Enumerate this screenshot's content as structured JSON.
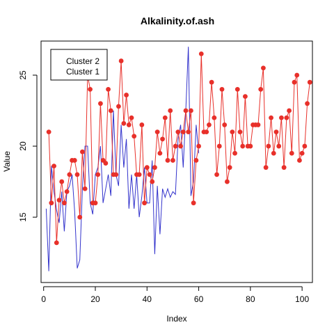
{
  "chart_data": {
    "type": "line",
    "title": "Alkalinity.of.ash",
    "xlabel": "Index",
    "ylabel": "Value",
    "xlim": [
      -1,
      104
    ],
    "ylim": [
      10.4,
      27.4
    ],
    "x_ticks": [
      0,
      20,
      40,
      60,
      80,
      100
    ],
    "y_ticks": [
      15,
      20,
      25
    ],
    "legend": {
      "position": "top-left",
      "entries": [
        "Cluster 2",
        "Cluster 1"
      ]
    },
    "series": [
      {
        "name": "Cluster 1",
        "color": "#3333cc",
        "marker": "none",
        "x": [
          1,
          2,
          3,
          4,
          5,
          6,
          7,
          8,
          9,
          10,
          11,
          12,
          13,
          14,
          15,
          16,
          17,
          18,
          19,
          20,
          21,
          22,
          23,
          24,
          25,
          26,
          27,
          28,
          29,
          30,
          31,
          32,
          33,
          34,
          35,
          36,
          37,
          38,
          39,
          40,
          41,
          42,
          43,
          44,
          45,
          46,
          47,
          48,
          49,
          50,
          51,
          52,
          53,
          54,
          55,
          56,
          57,
          58,
          59,
          60
        ],
        "y": [
          15.6,
          11.2,
          18.6,
          16.8,
          15.5,
          14.6,
          16.8,
          14.0,
          16.8,
          17.2,
          18.0,
          15.4,
          11.4,
          12.0,
          17.0,
          20.0,
          20.0,
          16.0,
          15.2,
          18.0,
          18.5,
          20.0,
          16.0,
          17.0,
          18.0,
          16.5,
          22.5,
          18.0,
          17.2,
          21.5,
          18.5,
          20.5,
          15.6,
          18.0,
          15.6,
          18.0,
          15.0,
          16.5,
          18.5,
          16.0,
          16.0,
          19.0,
          12.4,
          17.2,
          13.8,
          17.0,
          16.4,
          17.0,
          16.4,
          16.8,
          16.6,
          20.5,
          21.5,
          18.5,
          22.5,
          27.0,
          16.5,
          17.5,
          21.5,
          19.5
        ]
      },
      {
        "name": "Cluster 2",
        "color": "#e8302a",
        "marker": "filled-circle",
        "x": [
          2,
          3,
          4,
          5,
          6,
          7,
          8,
          9,
          10,
          11,
          12,
          13,
          14,
          15,
          16,
          17,
          18,
          19,
          20,
          21,
          22,
          23,
          24,
          25,
          26,
          27,
          28,
          29,
          30,
          31,
          32,
          33,
          34,
          35,
          36,
          37,
          38,
          39,
          40,
          41,
          42,
          43,
          44,
          45,
          46,
          47,
          48,
          49,
          50,
          51,
          52,
          53,
          54,
          55,
          56,
          57,
          58,
          59,
          60,
          61,
          62,
          63,
          64,
          65,
          66,
          67,
          68,
          69,
          70,
          71,
          72,
          73,
          74,
          75,
          76,
          77,
          78,
          79,
          80,
          81,
          82,
          83,
          84,
          85,
          86,
          87,
          88,
          89,
          90,
          91,
          92,
          93,
          94,
          95,
          96,
          97,
          98,
          99,
          100,
          101,
          102,
          103
        ],
        "y": [
          21.0,
          16.0,
          18.6,
          13.2,
          16.2,
          17.5,
          16.0,
          16.8,
          18.0,
          19.0,
          19.0,
          18.0,
          15.0,
          19.6,
          17.0,
          25.0,
          24.0,
          16.0,
          16.0,
          18.0,
          23.0,
          19.0,
          18.8,
          24.0,
          22.5,
          18.0,
          18.0,
          22.8,
          26.0,
          21.6,
          23.6,
          21.5,
          22.0,
          20.7,
          18.0,
          18.0,
          21.5,
          16.0,
          18.5,
          18.0,
          17.5,
          18.5,
          21.0,
          19.5,
          20.5,
          22.0,
          19.0,
          22.5,
          19.0,
          20.0,
          21.0,
          20.0,
          21.0,
          22.5,
          21.0,
          22.5,
          16.0,
          19.0,
          20.0,
          26.5,
          21.0,
          21.0,
          21.5,
          24.5,
          22.0,
          18.0,
          20.0,
          24.0,
          21.5,
          17.5,
          18.5,
          21.0,
          19.5,
          24.0,
          21.0,
          20.0,
          23.5,
          20.0,
          20.0,
          21.5,
          21.5,
          21.5,
          24.0,
          25.5,
          18.5,
          20.0,
          22.0,
          19.5,
          21.0,
          20.0,
          22.0,
          18.5,
          22.0,
          22.5,
          19.5,
          24.5,
          25.0,
          19.0,
          19.5,
          20.0,
          23.0,
          24.5
        ]
      }
    ]
  }
}
